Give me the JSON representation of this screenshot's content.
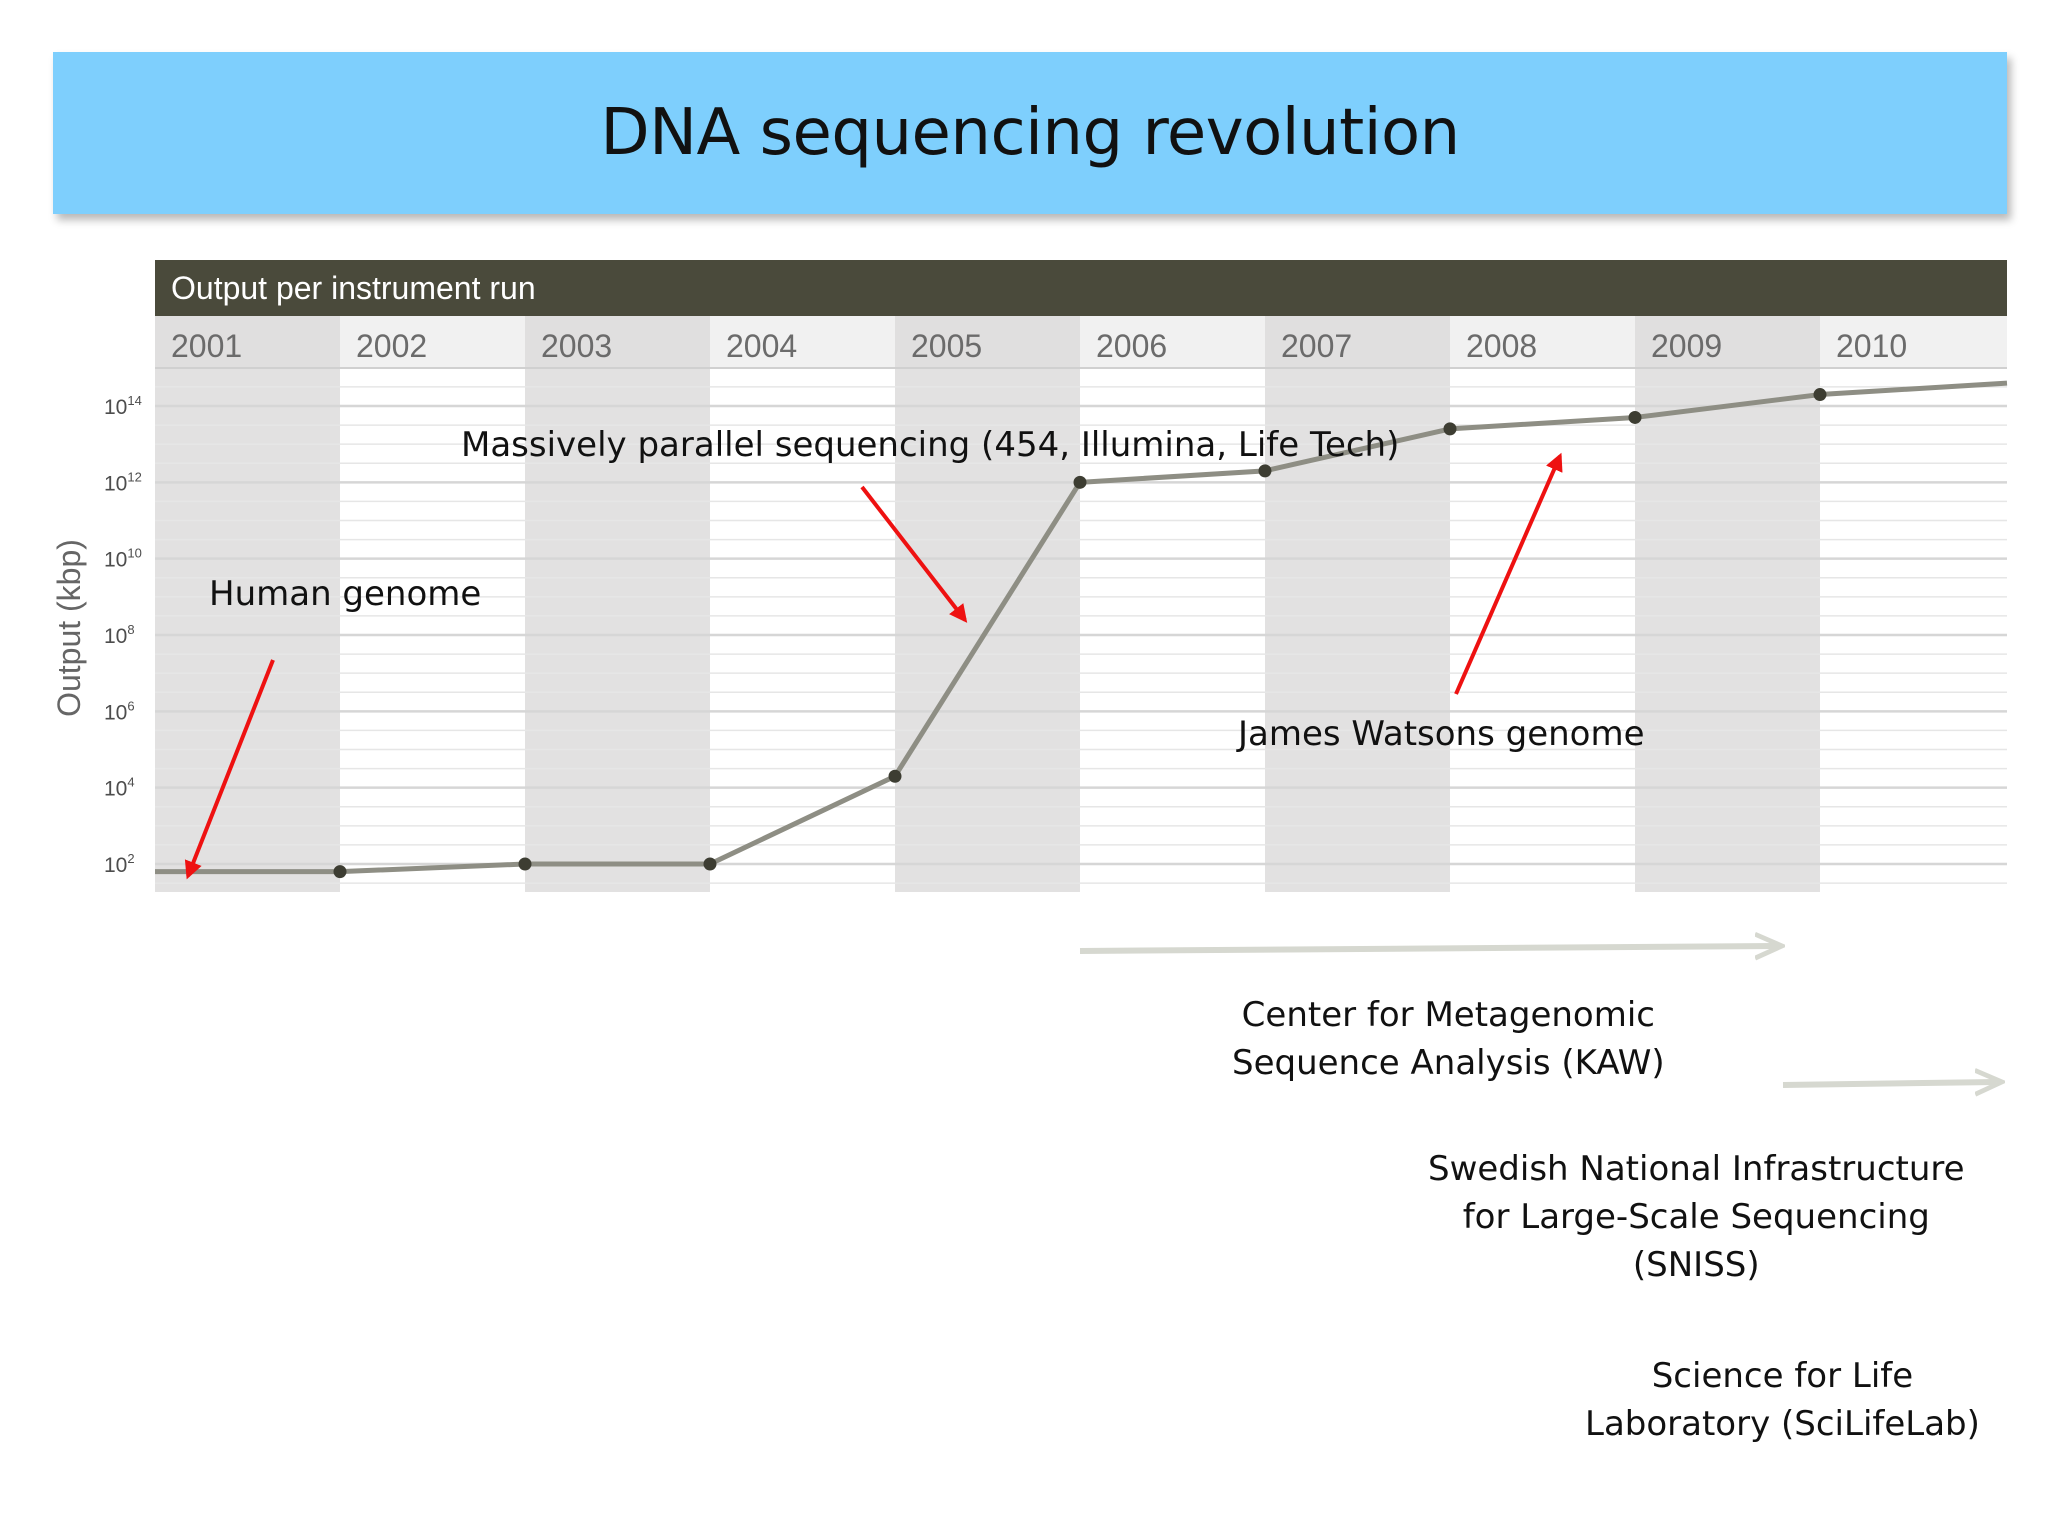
{
  "slide": {
    "title": "DNA sequencing revolution"
  },
  "chart_data": {
    "type": "line",
    "title": "Output per instrument run",
    "ylabel": "Output (kbp)",
    "xlabel": "",
    "categories": [
      "2001",
      "2002",
      "2003",
      "2004",
      "2005",
      "2006",
      "2007",
      "2008",
      "2009",
      "2010"
    ],
    "y_scale": "log10",
    "ylim_log10": [
      1.6,
      14.4
    ],
    "y_ticks": [
      {
        "exp": 14,
        "label_base": "10",
        "label_exp": "14"
      },
      {
        "exp": 12,
        "label_base": "10",
        "label_exp": "12"
      },
      {
        "exp": 10,
        "label_base": "10",
        "label_exp": "10"
      },
      {
        "exp": 8,
        "label_base": "10",
        "label_exp": "8"
      },
      {
        "exp": 6,
        "label_base": "10",
        "label_exp": "6"
      },
      {
        "exp": 4,
        "label_base": "10",
        "label_exp": "4"
      },
      {
        "exp": 2,
        "label_base": "10",
        "label_exp": "2"
      }
    ],
    "series": [
      {
        "x": [
          2001,
          2002,
          2003,
          2004,
          2005,
          2006,
          2007,
          2008,
          2009,
          2010
        ],
        "log10_values": [
          1.8,
          1.8,
          2.0,
          2.0,
          4.3,
          12.0,
          12.3,
          13.4,
          13.7,
          14.3
        ],
        "line_extends_to_log10": 14.6
      }
    ],
    "grid": true,
    "colors": {
      "header_bar": "#4a4a3b",
      "header_text": "#ffffff",
      "year_band_dark": "#e0dfdf",
      "year_band_light": "#f1f1f1",
      "plot_band_dark": "#e2e1e1",
      "plot_band_light": "#ffffff",
      "line": "#8e8e84",
      "marker": "#3d3d32",
      "arrow_red": "#ee1111"
    }
  },
  "annotations": {
    "human_genome": "Human genome",
    "mps": "Massively parallel sequencing (454, Illumina, Life Tech)",
    "watson": "James Watsons genome",
    "cmsa": [
      "Center for Metagenomic",
      "Sequence Analysis (KAW)"
    ],
    "sniss": [
      "Swedish National Infrastructure",
      "for Large-Scale Sequencing",
      "(SNISS)"
    ],
    "scilifelab": [
      "Science for Life",
      "Laboratory (SciLifeLab)"
    ]
  }
}
